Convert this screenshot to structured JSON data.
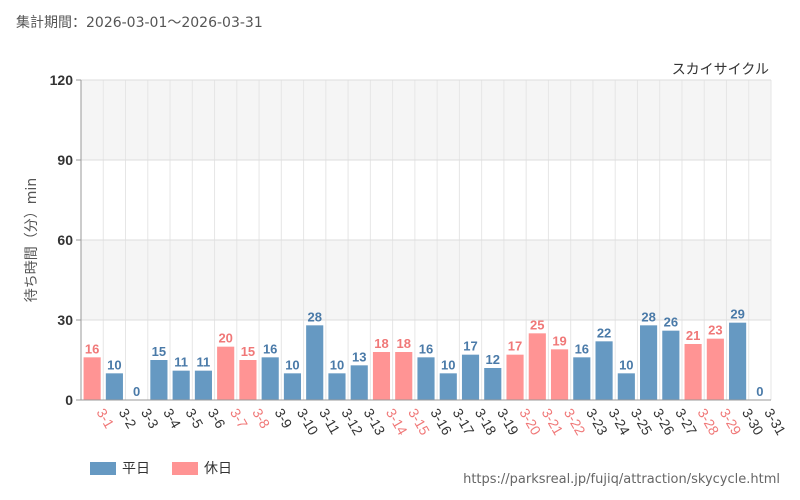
{
  "header": {
    "period": "集計期間：2026-03-01～2026-03-31"
  },
  "legend": {
    "weekday": "平日",
    "holiday": "休日"
  },
  "colors": {
    "weekday": "#6699c2",
    "holiday": "#ff9494",
    "weekday_text": "#4a7aa8",
    "holiday_text": "#f07878"
  },
  "source_url": "https://parksreal.jp/fujiq/attraction/skycycle.html",
  "chart_data": {
    "type": "bar",
    "title": "スカイサイクル",
    "ylabel": "待ち時間（分）min",
    "ylim": [
      0,
      120
    ],
    "yticks": [
      0,
      30,
      60,
      90,
      120
    ],
    "categories": [
      "3-1",
      "3-2",
      "3-3",
      "3-4",
      "3-5",
      "3-6",
      "3-7",
      "3-8",
      "3-9",
      "3-10",
      "3-11",
      "3-12",
      "3-13",
      "3-14",
      "3-15",
      "3-16",
      "3-17",
      "3-18",
      "3-19",
      "3-20",
      "3-21",
      "3-22",
      "3-23",
      "3-24",
      "3-25",
      "3-26",
      "3-27",
      "3-28",
      "3-29",
      "3-30",
      "3-31"
    ],
    "values": [
      16,
      10,
      0,
      15,
      11,
      11,
      20,
      15,
      16,
      10,
      28,
      10,
      13,
      18,
      18,
      16,
      10,
      17,
      12,
      17,
      25,
      19,
      16,
      22,
      10,
      28,
      26,
      21,
      23,
      29,
      0
    ],
    "day_type": [
      "holiday",
      "weekday",
      "weekday",
      "weekday",
      "weekday",
      "weekday",
      "holiday",
      "holiday",
      "weekday",
      "weekday",
      "weekday",
      "weekday",
      "weekday",
      "holiday",
      "holiday",
      "weekday",
      "weekday",
      "weekday",
      "weekday",
      "holiday",
      "holiday",
      "holiday",
      "weekday",
      "weekday",
      "weekday",
      "weekday",
      "weekday",
      "holiday",
      "holiday",
      "weekday",
      "weekday"
    ],
    "series": [
      {
        "name": "平日"
      },
      {
        "name": "休日"
      }
    ],
    "grid": true,
    "legend_position": "bottom-left"
  }
}
